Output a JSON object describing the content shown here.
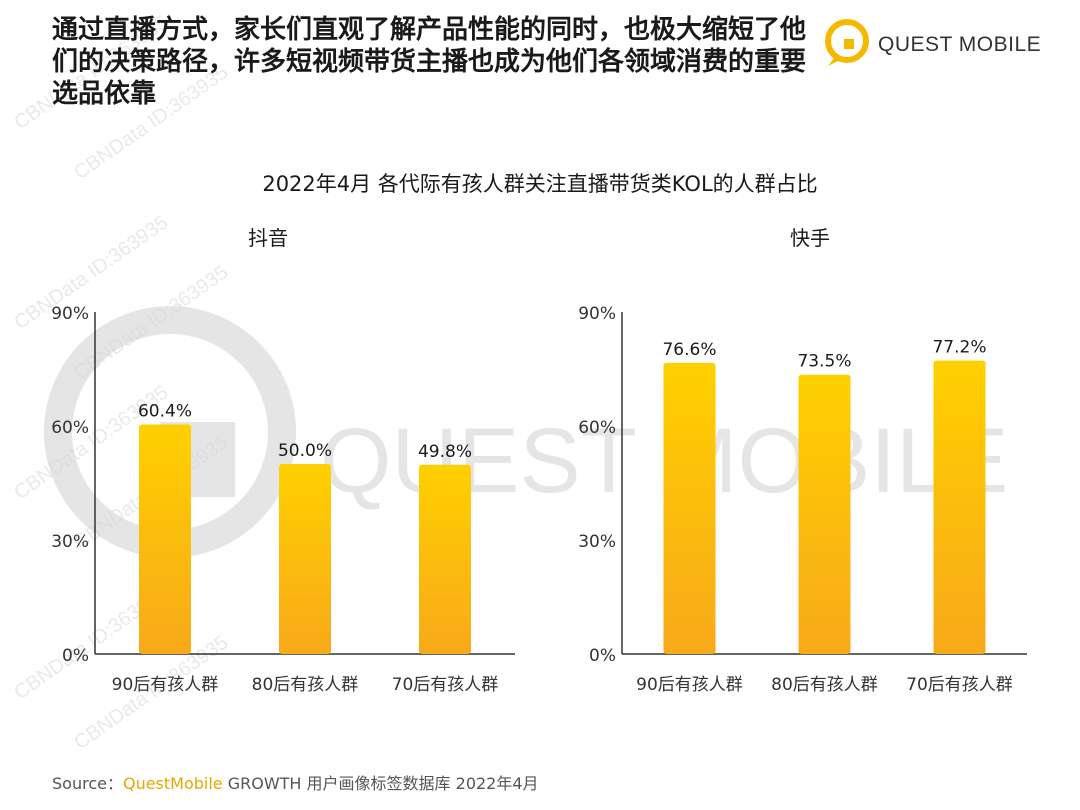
{
  "headline": "通过直播方式，家长们直观了解产品性能的同时，也极大缩短了他们的决策路径，许多短视频带货主播也成为他们各领域消费的重要选品依靠",
  "logo": {
    "text": "QUEST MOBILE",
    "icon": "quest-mobile-logo-icon"
  },
  "watermark": {
    "text": "CBNData ID:363935",
    "big_text": "QUEST MOBILE"
  },
  "colors": {
    "bar_top": "#ffd000",
    "bar_bottom": "#f8a91a",
    "axis": "#333333",
    "brand": "#e8a600"
  },
  "chart_data": [
    {
      "type": "bar",
      "title": "2022年4月 各代际有孩人群关注直播带货类KOL的人群占比",
      "panel": "抖音",
      "categories": [
        "90后有孩人群",
        "80后有孩人群",
        "70后有孩人群"
      ],
      "values": [
        60.4,
        50.0,
        49.8
      ],
      "labels": [
        "60.4%",
        "50.0%",
        "49.8%"
      ],
      "ylim": [
        0,
        90
      ],
      "yticks": [
        0,
        30,
        60,
        90
      ],
      "ytick_labels": [
        "0%",
        "30%",
        "60%",
        "90%"
      ],
      "grid": false
    },
    {
      "type": "bar",
      "title": "2022年4月 各代际有孩人群关注直播带货类KOL的人群占比",
      "panel": "快手",
      "categories": [
        "90后有孩人群",
        "80后有孩人群",
        "70后有孩人群"
      ],
      "values": [
        76.6,
        73.5,
        77.2
      ],
      "labels": [
        "76.6%",
        "73.5%",
        "77.2%"
      ],
      "ylim": [
        0,
        90
      ],
      "yticks": [
        0,
        30,
        60,
        90
      ],
      "ytick_labels": [
        "0%",
        "30%",
        "60%",
        "90%"
      ],
      "grid": false
    }
  ],
  "source": {
    "prefix": "Source：",
    "brand": "QuestMobile",
    "rest": " GROWTH 用户画像标签数据库 2022年4月"
  }
}
